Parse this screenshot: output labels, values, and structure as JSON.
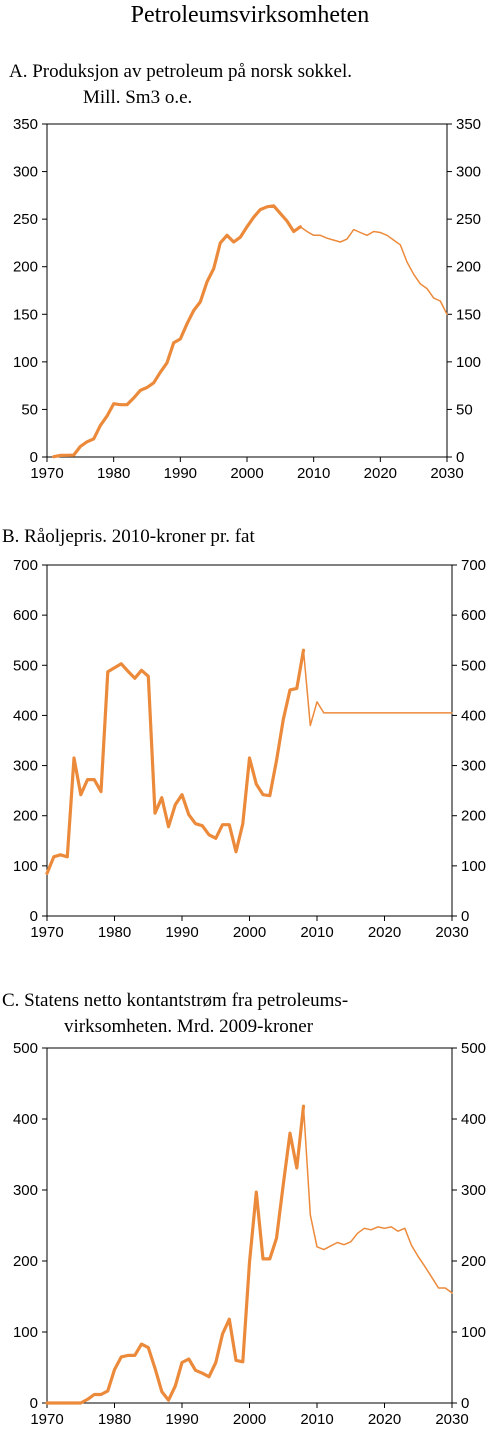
{
  "page_title": "Petroleumsvirksomheten",
  "colors": {
    "series": "#ec8a3c",
    "axis": "#000000"
  },
  "chart_data": [
    {
      "type": "line",
      "title_line1": "A. Produksjon av petroleum på norsk sokkel.",
      "title_line2": "Mill. Sm3 o.e.",
      "xlim": [
        1970,
        2030
      ],
      "ylim": [
        0,
        350
      ],
      "x_ticks": [
        "1970",
        "1980",
        "1990",
        "2000",
        "2010",
        "2020",
        "2030"
      ],
      "y_ticks": [
        "0",
        "50",
        "100",
        "150",
        "200",
        "250",
        "300",
        "350"
      ],
      "series": [
        {
          "style": "thick",
          "x": [
            1971,
            1972,
            1973,
            1974,
            1975,
            1976,
            1977,
            1978,
            1979,
            1980,
            1981,
            1982,
            1983,
            1984,
            1985,
            1986,
            1987,
            1988,
            1989,
            1990,
            1991,
            1992,
            1993,
            1994,
            1995,
            1996,
            1997,
            1998,
            1999,
            2000,
            2001,
            2002,
            2003,
            2004,
            2005,
            2006,
            2007,
            2008
          ],
          "y": [
            0.3,
            1.7,
            1.8,
            2.0,
            11,
            16,
            19,
            33,
            43,
            56,
            55,
            55,
            62,
            70,
            73,
            78,
            89,
            99,
            120,
            124,
            140,
            154,
            163,
            184,
            198,
            225,
            233,
            226,
            231,
            242,
            252,
            260,
            263,
            264,
            256,
            248,
            237,
            242
          ]
        },
        {
          "style": "thin",
          "x": [
            2008,
            2009,
            2010,
            2011,
            2012,
            2013,
            2014,
            2015,
            2016,
            2017,
            2018,
            2019,
            2020,
            2021,
            2022,
            2023,
            2024,
            2025,
            2026,
            2027,
            2028,
            2029,
            2030
          ],
          "y": [
            242,
            237,
            233,
            233,
            230,
            228,
            226,
            229,
            239,
            236,
            233,
            237,
            236,
            233,
            228,
            223,
            205,
            192,
            182,
            177,
            167,
            164,
            150
          ]
        }
      ]
    },
    {
      "type": "line",
      "title_line1": "B. Råoljepris. 2010-kroner pr. fat",
      "title_line2": "",
      "xlim": [
        1970,
        2030
      ],
      "ylim": [
        0,
        700
      ],
      "x_ticks": [
        "1970",
        "1980",
        "1990",
        "2000",
        "2010",
        "2020",
        "2030"
      ],
      "y_ticks": [
        "0",
        "100",
        "200",
        "300",
        "400",
        "500",
        "600",
        "700"
      ],
      "series": [
        {
          "style": "thick",
          "x": [
            1970,
            1971,
            1972,
            1973,
            1974,
            1975,
            1976,
            1977,
            1978,
            1979,
            1980,
            1981,
            1982,
            1983,
            1984,
            1985,
            1986,
            1987,
            1988,
            1989,
            1990,
            1991,
            1992,
            1993,
            1994,
            1995,
            1996,
            1997,
            1998,
            1999,
            2000,
            2001,
            2002,
            2003,
            2004,
            2005,
            2006,
            2007,
            2008
          ],
          "y": [
            85,
            118,
            122,
            118,
            315,
            242,
            272,
            272,
            248,
            487,
            495,
            503,
            488,
            474,
            490,
            478,
            205,
            236,
            178,
            222,
            242,
            202,
            184,
            180,
            162,
            155,
            182,
            182,
            128,
            184,
            315,
            263,
            242,
            240,
            310,
            392,
            451,
            454,
            530
          ]
        },
        {
          "style": "thin",
          "x": [
            2008,
            2009,
            2010,
            2011,
            2012,
            2015,
            2020,
            2025,
            2030
          ],
          "y": [
            530,
            380,
            427,
            405,
            405,
            405,
            405,
            405,
            405
          ]
        }
      ]
    },
    {
      "type": "line",
      "title_line1": "C. Statens netto kontantstrøm fra petroleums-",
      "title_line2": "virksomheten. Mrd. 2009-kroner",
      "xlim": [
        1970,
        2030
      ],
      "ylim": [
        0,
        500
      ],
      "x_ticks": [
        "1970",
        "1980",
        "1990",
        "2000",
        "2010",
        "2020",
        "2030"
      ],
      "y_ticks": [
        "0",
        "100",
        "200",
        "300",
        "400",
        "500"
      ],
      "series": [
        {
          "style": "thick",
          "x": [
            1970,
            1971,
            1972,
            1973,
            1974,
            1975,
            1976,
            1977,
            1978,
            1979,
            1980,
            1981,
            1982,
            1983,
            1984,
            1985,
            1986,
            1987,
            1988,
            1989,
            1990,
            1991,
            1992,
            1993,
            1994,
            1995,
            1996,
            1997,
            1998,
            1999,
            2000,
            2001,
            2002,
            2003,
            2004,
            2005,
            2006,
            2007,
            2008
          ],
          "y": [
            0,
            0,
            0,
            0,
            0,
            0,
            5,
            12,
            12,
            17,
            47,
            65,
            67,
            67,
            83,
            78,
            49,
            16,
            4,
            24,
            57,
            62,
            46,
            42,
            37,
            57,
            97,
            118,
            60,
            58,
            198,
            297,
            203,
            203,
            232,
            308,
            380,
            331,
            418
          ]
        },
        {
          "style": "thin",
          "x": [
            2008,
            2009,
            2010,
            2011,
            2012,
            2013,
            2014,
            2015,
            2016,
            2017,
            2018,
            2019,
            2020,
            2021,
            2022,
            2023,
            2024,
            2025,
            2026,
            2027,
            2028,
            2029,
            2030
          ],
          "y": [
            418,
            265,
            220,
            216,
            221,
            226,
            223,
            227,
            239,
            246,
            244,
            248,
            246,
            248,
            242,
            246,
            222,
            206,
            192,
            177,
            162,
            162,
            155
          ]
        }
      ]
    }
  ]
}
